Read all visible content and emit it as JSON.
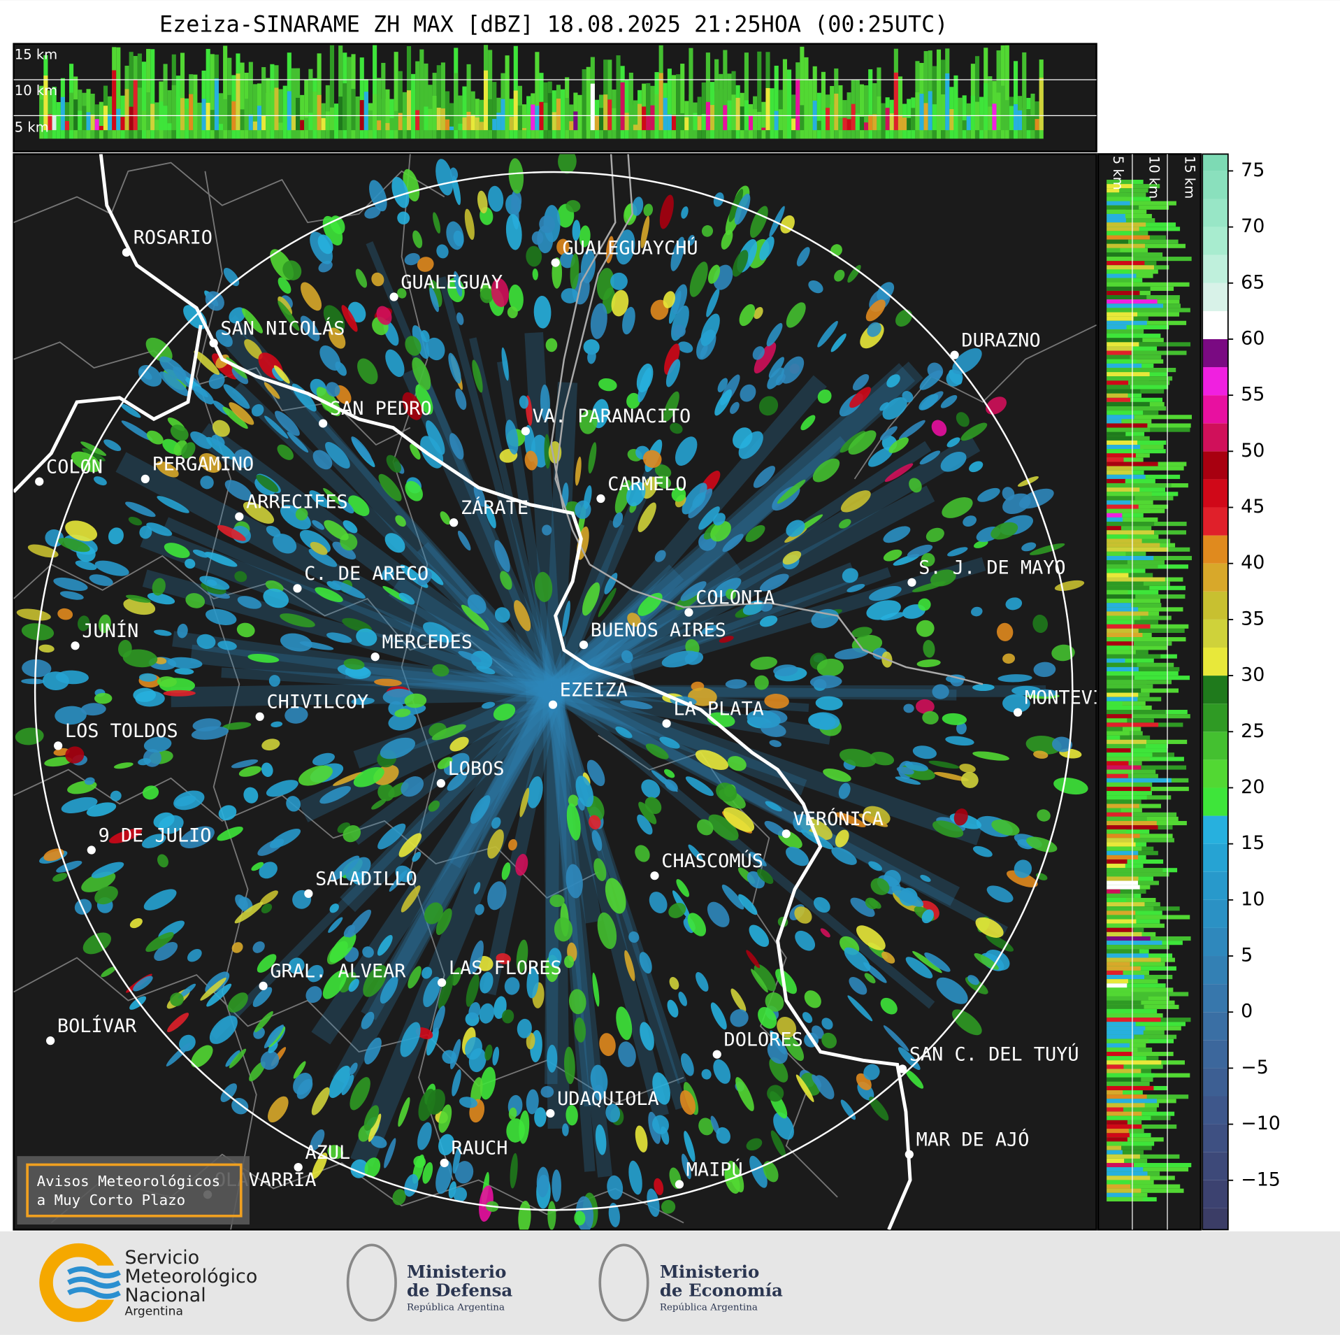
{
  "title": "Ezeiza-SINARAME ZH MAX [dBZ] 18.08.2025 21:25HOA (00:25UTC)",
  "top_profile": {
    "labels": [
      "15 km",
      "10 km",
      "5 km"
    ]
  },
  "side_profile": {
    "labels": [
      "5 km",
      "10 km",
      "15 km"
    ]
  },
  "cities": [
    "ROSARIO",
    "GUALEGUAYCHÚ",
    "GUALEGUAY",
    "SAN NICOLÁS",
    "DURAZNO",
    "SAN PEDRO",
    "VA. PARANACITO",
    "COLON",
    "PERGAMINO",
    "CARMELO",
    "ARRECIFES",
    "ZÁRATE",
    "S. J. DE MAYO",
    "C. DE ARECO",
    "COLONIA",
    "BUENOS AIRES",
    "JUNÍN",
    "MERCEDES",
    "MONTEVIDEO",
    "EZEIZA",
    "LA PLATA",
    "CHIVILCOY",
    "LOS TOLDOS",
    "LOBOS",
    "VERÓNICA",
    "9 DE JULIO",
    "CHASCOMÚS",
    "SALADILLO",
    "GRAL. ALVEAR",
    "LAS FLORES",
    "BOLÍVAR",
    "DOLORES",
    "SAN C. DEL TUYÚ",
    "UDAQUIOLA",
    "MAR DE AJÓ",
    "RAUCH",
    "AZUL",
    "OLAVARRÍA",
    "MAIPÚ"
  ],
  "colorbar": {
    "lim": [
      -19.4,
      76.5
    ],
    "ticks": [
      {
        "value": -15,
        "label": "−15"
      },
      {
        "value": -10,
        "label": "−10"
      },
      {
        "value": -5,
        "label": "−5"
      },
      0,
      5,
      10,
      15,
      20,
      25,
      30,
      35,
      40,
      45,
      50,
      55,
      60,
      65,
      70,
      75
    ],
    "bounds": [
      -20,
      -17.5,
      -15,
      -12.5,
      -10,
      -7.5,
      -5,
      -2.5,
      0,
      2.5,
      5,
      7.5,
      10,
      12.5,
      15,
      17.5,
      20,
      22.5,
      25,
      27.5,
      30,
      32.5,
      35,
      37.5,
      40,
      42.5,
      45,
      47.5,
      50,
      52.5,
      55,
      57.5,
      60,
      62.5,
      65,
      67.5,
      70,
      72.5,
      75,
      77.5
    ],
    "colors": [
      "#3b3d66",
      "#3c4270",
      "#3d4979",
      "#3e5082",
      "#3e578b",
      "#3d5f93",
      "#3c679c",
      "#3a6fa4",
      "#3777ac",
      "#3380b4",
      "#2f88bc",
      "#2b91c4",
      "#2899cb",
      "#26a3d3",
      "#27b0de",
      "#3ee53a",
      "#52d833",
      "#44c030",
      "#2f9a24",
      "#1f7a1c",
      "#e8e83a",
      "#cfd23a",
      "#c8c030",
      "#d8a82a",
      "#e08a1e",
      "#e0202a",
      "#d00818",
      "#a80010",
      "#d0105a",
      "#e810a0",
      "#f020e0",
      "#7a0a82",
      "#ffffff",
      "#d8f2e8",
      "#bff0dc",
      "#a8eccf",
      "#98e6c6",
      "#8ae0bd",
      "#7ddab4"
    ]
  },
  "legend_box": {
    "lines": [
      "Avisos Meteorológicos",
      "a Muy Corto Plazo"
    ]
  },
  "footer": {
    "smn": [
      "Servicio",
      "Meteorológico",
      "Nacional",
      "Argentina"
    ],
    "defensa": {
      "title": [
        "Ministerio",
        "de Defensa"
      ],
      "subtitle": "República Argentina"
    },
    "economia": {
      "title": [
        "Ministerio",
        "de Economía"
      ],
      "subtitle": "República Argentina"
    }
  }
}
